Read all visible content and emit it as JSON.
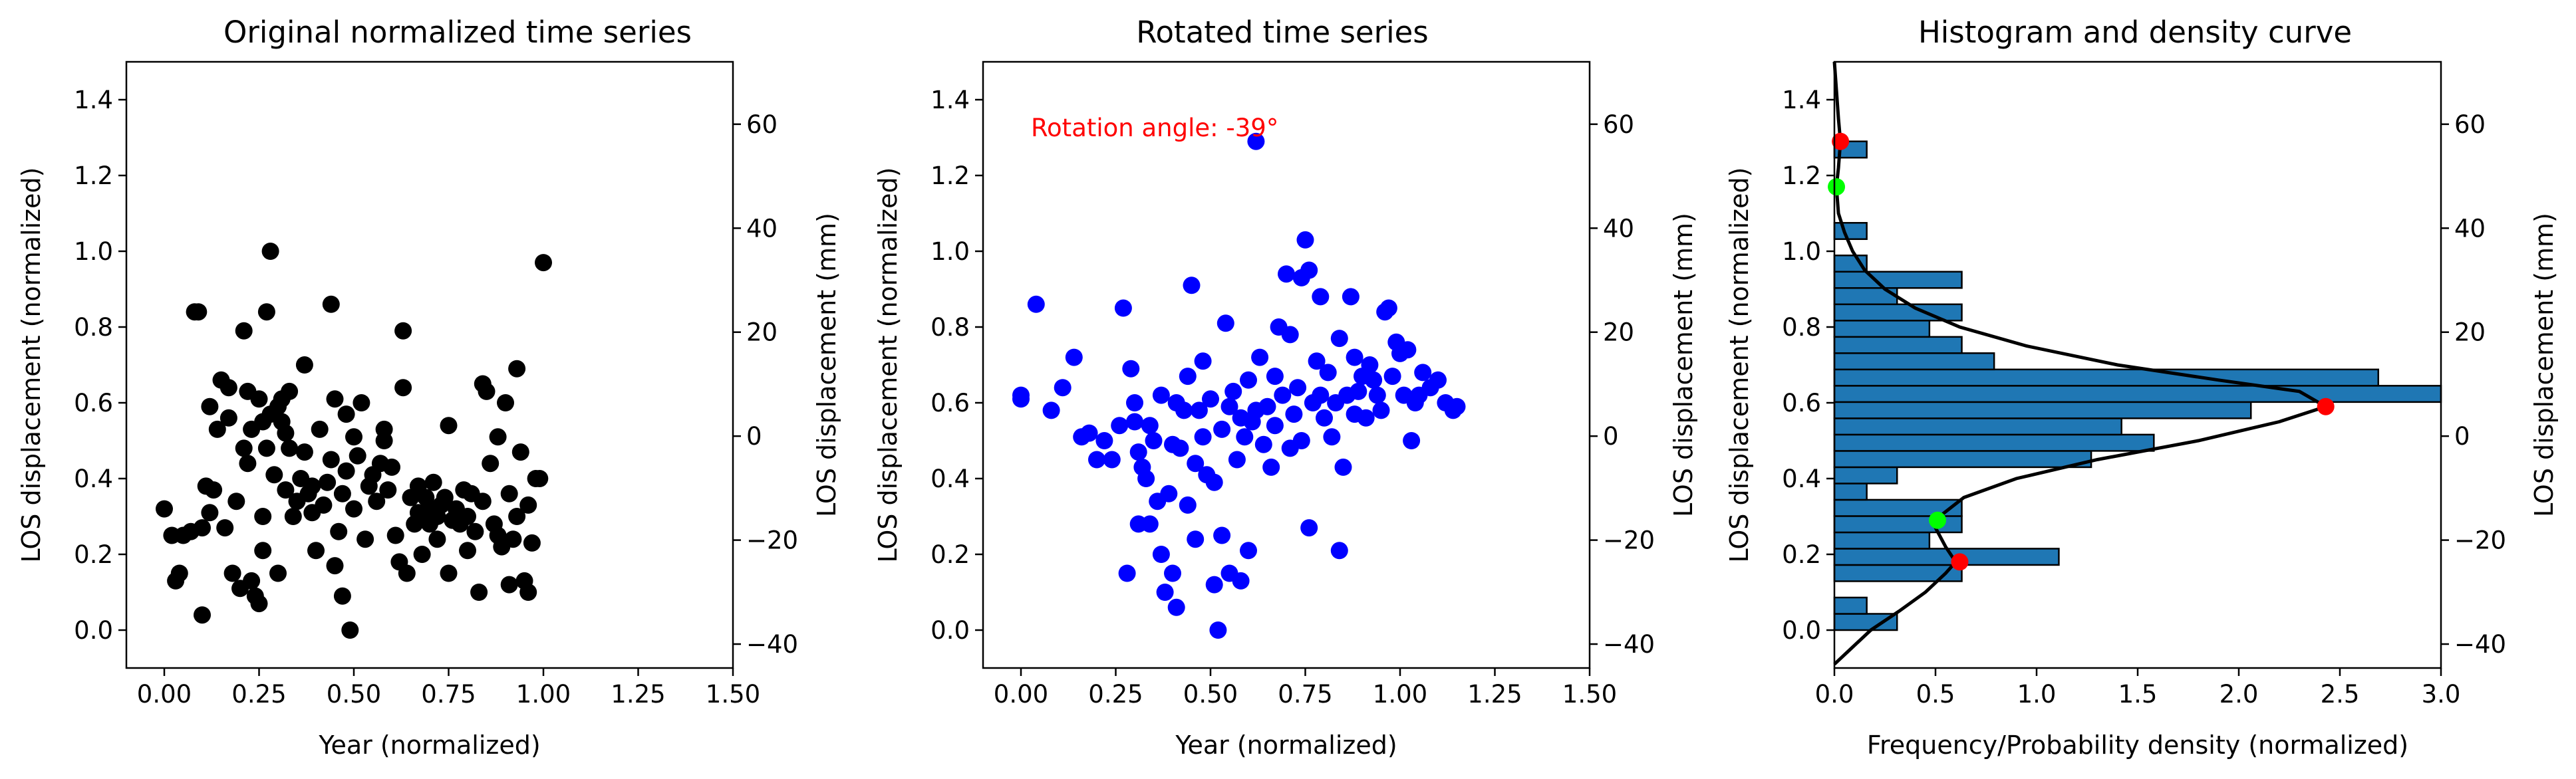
{
  "chart_data": [
    {
      "type": "scatter",
      "title": "Original normalized time series",
      "xlabel": "Year (normalized)",
      "ylabel": "LOS displacement (normalized)",
      "ylabel_right": "LOS displacement (mm)",
      "xlim": [
        -0.1,
        1.5
      ],
      "ylim": [
        -0.1,
        1.5
      ],
      "ylim_right": [
        -44.6,
        72.0
      ],
      "xticks": [
        "0.00",
        "0.25",
        "0.50",
        "0.75",
        "1.00",
        "1.25",
        "1.50"
      ],
      "yticks": [
        "0.0",
        "0.2",
        "0.4",
        "0.6",
        "0.8",
        "1.0",
        "1.2",
        "1.4"
      ],
      "yticks_right": [
        "-40",
        "-20",
        "0",
        "20",
        "40",
        "60"
      ],
      "grid": false,
      "color": "#000000",
      "points": [
        [
          0.0,
          0.32
        ],
        [
          0.02,
          0.25
        ],
        [
          0.03,
          0.13
        ],
        [
          0.04,
          0.15
        ],
        [
          0.05,
          0.25
        ],
        [
          0.07,
          0.26
        ],
        [
          0.08,
          0.84
        ],
        [
          0.09,
          0.84
        ],
        [
          0.1,
          0.04
        ],
        [
          0.1,
          0.27
        ],
        [
          0.11,
          0.38
        ],
        [
          0.12,
          0.59
        ],
        [
          0.12,
          0.31
        ],
        [
          0.13,
          0.37
        ],
        [
          0.14,
          0.53
        ],
        [
          0.15,
          0.66
        ],
        [
          0.16,
          0.27
        ],
        [
          0.17,
          0.64
        ],
        [
          0.17,
          0.56
        ],
        [
          0.18,
          0.15
        ],
        [
          0.19,
          0.34
        ],
        [
          0.2,
          0.11
        ],
        [
          0.21,
          0.79
        ],
        [
          0.21,
          0.48
        ],
        [
          0.22,
          0.44
        ],
        [
          0.22,
          0.63
        ],
        [
          0.23,
          0.13
        ],
        [
          0.23,
          0.53
        ],
        [
          0.24,
          0.09
        ],
        [
          0.25,
          0.07
        ],
        [
          0.25,
          0.61
        ],
        [
          0.26,
          0.55
        ],
        [
          0.26,
          0.21
        ],
        [
          0.26,
          0.3
        ],
        [
          0.27,
          0.84
        ],
        [
          0.27,
          0.48
        ],
        [
          0.28,
          1.0
        ],
        [
          0.28,
          0.57
        ],
        [
          0.29,
          0.41
        ],
        [
          0.3,
          0.15
        ],
        [
          0.3,
          0.59
        ],
        [
          0.31,
          0.61
        ],
        [
          0.31,
          0.55
        ],
        [
          0.32,
          0.52
        ],
        [
          0.32,
          0.37
        ],
        [
          0.33,
          0.63
        ],
        [
          0.33,
          0.48
        ],
        [
          0.34,
          0.3
        ],
        [
          0.35,
          0.34
        ],
        [
          0.36,
          0.4
        ],
        [
          0.37,
          0.7
        ],
        [
          0.37,
          0.47
        ],
        [
          0.38,
          0.36
        ],
        [
          0.39,
          0.38
        ],
        [
          0.39,
          0.31
        ],
        [
          0.4,
          0.21
        ],
        [
          0.41,
          0.53
        ],
        [
          0.42,
          0.33
        ],
        [
          0.43,
          0.39
        ],
        [
          0.44,
          0.86
        ],
        [
          0.44,
          0.45
        ],
        [
          0.45,
          0.61
        ],
        [
          0.45,
          0.17
        ],
        [
          0.46,
          0.26
        ],
        [
          0.47,
          0.36
        ],
        [
          0.47,
          0.09
        ],
        [
          0.48,
          0.42
        ],
        [
          0.48,
          0.57
        ],
        [
          0.49,
          0.0
        ],
        [
          0.5,
          0.51
        ],
        [
          0.5,
          0.32
        ],
        [
          0.51,
          0.46
        ],
        [
          0.52,
          0.6
        ],
        [
          0.53,
          0.24
        ],
        [
          0.54,
          0.38
        ],
        [
          0.55,
          0.41
        ],
        [
          0.56,
          0.34
        ],
        [
          0.57,
          0.44
        ],
        [
          0.58,
          0.53
        ],
        [
          0.58,
          0.5
        ],
        [
          0.59,
          0.37
        ],
        [
          0.6,
          0.43
        ],
        [
          0.61,
          0.25
        ],
        [
          0.62,
          0.18
        ],
        [
          0.63,
          0.79
        ],
        [
          0.63,
          0.64
        ],
        [
          0.64,
          0.15
        ],
        [
          0.65,
          0.35
        ],
        [
          0.66,
          0.28
        ],
        [
          0.67,
          0.31
        ],
        [
          0.67,
          0.38
        ],
        [
          0.68,
          0.2
        ],
        [
          0.69,
          0.35
        ],
        [
          0.7,
          0.32
        ],
        [
          0.7,
          0.28
        ],
        [
          0.71,
          0.39
        ],
        [
          0.72,
          0.3
        ],
        [
          0.72,
          0.24
        ],
        [
          0.73,
          0.33
        ],
        [
          0.74,
          0.35
        ],
        [
          0.75,
          0.54
        ],
        [
          0.75,
          0.15
        ],
        [
          0.76,
          0.29
        ],
        [
          0.77,
          0.32
        ],
        [
          0.78,
          0.28
        ],
        [
          0.79,
          0.37
        ],
        [
          0.8,
          0.3
        ],
        [
          0.8,
          0.21
        ],
        [
          0.81,
          0.36
        ],
        [
          0.82,
          0.26
        ],
        [
          0.83,
          0.1
        ],
        [
          0.84,
          0.65
        ],
        [
          0.84,
          0.34
        ],
        [
          0.85,
          0.63
        ],
        [
          0.86,
          0.44
        ],
        [
          0.87,
          0.28
        ],
        [
          0.88,
          0.51
        ],
        [
          0.88,
          0.25
        ],
        [
          0.89,
          0.22
        ],
        [
          0.9,
          0.6
        ],
        [
          0.91,
          0.12
        ],
        [
          0.91,
          0.36
        ],
        [
          0.92,
          0.24
        ],
        [
          0.93,
          0.69
        ],
        [
          0.93,
          0.3
        ],
        [
          0.94,
          0.47
        ],
        [
          0.95,
          0.13
        ],
        [
          0.96,
          0.33
        ],
        [
          0.96,
          0.1
        ],
        [
          0.97,
          0.23
        ],
        [
          0.98,
          0.4
        ],
        [
          0.99,
          0.4
        ],
        [
          1.0,
          0.97
        ]
      ]
    },
    {
      "type": "scatter",
      "title": "Rotated time series",
      "xlabel": "Year (normalized)",
      "ylabel": "LOS displacement (normalized)",
      "ylabel_right": "LOS displacement (mm)",
      "xlim": [
        -0.1,
        1.5
      ],
      "ylim": [
        -0.1,
        1.5
      ],
      "ylim_right": [
        -44.6,
        72.0
      ],
      "xticks": [
        "0.00",
        "0.25",
        "0.50",
        "0.75",
        "1.00",
        "1.25",
        "1.50"
      ],
      "yticks": [
        "0.0",
        "0.2",
        "0.4",
        "0.6",
        "0.8",
        "1.0",
        "1.2",
        "1.4"
      ],
      "yticks_right": [
        "-40",
        "-20",
        "0",
        "20",
        "40",
        "60"
      ],
      "grid": false,
      "color": "#0000ff",
      "annotation": "Rotation angle: -39$^\\circ$",
      "annotation_display": "Rotation angle: -39°",
      "annotation_color": "#ff0000",
      "points": [
        [
          0.0,
          0.62
        ],
        [
          0.0,
          0.61
        ],
        [
          0.04,
          0.86
        ],
        [
          0.08,
          0.58
        ],
        [
          0.11,
          0.64
        ],
        [
          0.14,
          0.72
        ],
        [
          0.16,
          0.51
        ],
        [
          0.18,
          0.52
        ],
        [
          0.2,
          0.45
        ],
        [
          0.22,
          0.5
        ],
        [
          0.24,
          0.45
        ],
        [
          0.26,
          0.54
        ],
        [
          0.27,
          0.85
        ],
        [
          0.28,
          0.15
        ],
        [
          0.29,
          0.69
        ],
        [
          0.3,
          0.6
        ],
        [
          0.3,
          0.55
        ],
        [
          0.31,
          0.28
        ],
        [
          0.31,
          0.47
        ],
        [
          0.32,
          0.43
        ],
        [
          0.33,
          0.4
        ],
        [
          0.34,
          0.28
        ],
        [
          0.34,
          0.54
        ],
        [
          0.35,
          0.5
        ],
        [
          0.36,
          0.34
        ],
        [
          0.37,
          0.2
        ],
        [
          0.37,
          0.62
        ],
        [
          0.38,
          0.1
        ],
        [
          0.39,
          0.36
        ],
        [
          0.4,
          0.49
        ],
        [
          0.4,
          0.15
        ],
        [
          0.41,
          0.06
        ],
        [
          0.41,
          0.6
        ],
        [
          0.42,
          0.48
        ],
        [
          0.43,
          0.58
        ],
        [
          0.44,
          0.33
        ],
        [
          0.44,
          0.67
        ],
        [
          0.45,
          0.91
        ],
        [
          0.46,
          0.44
        ],
        [
          0.46,
          0.24
        ],
        [
          0.47,
          0.58
        ],
        [
          0.48,
          0.51
        ],
        [
          0.48,
          0.71
        ],
        [
          0.49,
          0.41
        ],
        [
          0.5,
          0.61
        ],
        [
          0.51,
          0.39
        ],
        [
          0.51,
          0.12
        ],
        [
          0.52,
          0.0
        ],
        [
          0.53,
          0.25
        ],
        [
          0.53,
          0.53
        ],
        [
          0.54,
          0.81
        ],
        [
          0.55,
          0.59
        ],
        [
          0.55,
          0.15
        ],
        [
          0.56,
          0.63
        ],
        [
          0.57,
          0.45
        ],
        [
          0.58,
          0.56
        ],
        [
          0.58,
          0.13
        ],
        [
          0.59,
          0.51
        ],
        [
          0.6,
          0.66
        ],
        [
          0.6,
          0.21
        ],
        [
          0.61,
          0.55
        ],
        [
          0.62,
          1.29
        ],
        [
          0.62,
          0.58
        ],
        [
          0.63,
          0.72
        ],
        [
          0.64,
          0.49
        ],
        [
          0.65,
          0.59
        ],
        [
          0.66,
          0.43
        ],
        [
          0.67,
          0.67
        ],
        [
          0.67,
          0.54
        ],
        [
          0.68,
          0.8
        ],
        [
          0.69,
          0.62
        ],
        [
          0.7,
          0.94
        ],
        [
          0.71,
          0.48
        ],
        [
          0.71,
          0.78
        ],
        [
          0.72,
          0.57
        ],
        [
          0.73,
          0.64
        ],
        [
          0.74,
          0.93
        ],
        [
          0.74,
          0.5
        ],
        [
          0.75,
          1.03
        ],
        [
          0.76,
          0.95
        ],
        [
          0.76,
          0.27
        ],
        [
          0.77,
          0.6
        ],
        [
          0.78,
          0.71
        ],
        [
          0.79,
          0.88
        ],
        [
          0.79,
          0.62
        ],
        [
          0.8,
          0.56
        ],
        [
          0.81,
          0.68
        ],
        [
          0.82,
          0.51
        ],
        [
          0.83,
          0.6
        ],
        [
          0.84,
          0.21
        ],
        [
          0.84,
          0.77
        ],
        [
          0.85,
          0.43
        ],
        [
          0.86,
          0.62
        ],
        [
          0.87,
          0.88
        ],
        [
          0.88,
          0.57
        ],
        [
          0.88,
          0.72
        ],
        [
          0.89,
          0.63
        ],
        [
          0.9,
          0.67
        ],
        [
          0.91,
          0.56
        ],
        [
          0.92,
          0.7
        ],
        [
          0.93,
          0.66
        ],
        [
          0.94,
          0.62
        ],
        [
          0.95,
          0.58
        ],
        [
          0.96,
          0.84
        ],
        [
          0.97,
          0.85
        ],
        [
          0.98,
          0.67
        ],
        [
          0.99,
          0.76
        ],
        [
          1.0,
          0.73
        ],
        [
          1.01,
          0.62
        ],
        [
          1.02,
          0.74
        ],
        [
          1.03,
          0.5
        ],
        [
          1.04,
          0.6
        ],
        [
          1.05,
          0.62
        ],
        [
          1.06,
          0.68
        ],
        [
          1.08,
          0.64
        ],
        [
          1.1,
          0.66
        ],
        [
          1.12,
          0.6
        ],
        [
          1.14,
          0.58
        ],
        [
          1.15,
          0.59
        ]
      ]
    },
    {
      "type": "bar",
      "orientation": "horizontal",
      "title": "Histogram and density curve",
      "xlabel": "Frequency/Probability density (normalized)",
      "ylabel": "LOS displacement (normalized)",
      "ylabel_right": "LOS displacement (mm)",
      "xlim": [
        0.0,
        3.0
      ],
      "ylim": [
        -0.1,
        1.5
      ],
      "ylim_right": [
        -44.6,
        72.0
      ],
      "xticks": [
        "0.0",
        "0.5",
        "1.0",
        "1.5",
        "2.0",
        "2.5",
        "3.0"
      ],
      "yticks": [
        "0.0",
        "0.2",
        "0.4",
        "0.6",
        "0.8",
        "1.0",
        "1.2",
        "1.4"
      ],
      "yticks_right": [
        "-40",
        "-20",
        "0",
        "20",
        "40",
        "60"
      ],
      "bar_color": "#1f77b4",
      "bin_edges": [
        0.0,
        0.043,
        0.086,
        0.129,
        0.172,
        0.215,
        0.258,
        0.301,
        0.344,
        0.387,
        0.43,
        0.473,
        0.516,
        0.559,
        0.602,
        0.645,
        0.688,
        0.731,
        0.774,
        0.817,
        0.86,
        0.903,
        0.946,
        0.989,
        1.032,
        1.075,
        1.118,
        1.161,
        1.204,
        1.247,
        1.29,
        1.333
      ],
      "bin_values": [
        0.31,
        0.16,
        0.0,
        0.63,
        1.11,
        0.47,
        0.63,
        0.63,
        0.16,
        0.31,
        1.27,
        1.58,
        1.42,
        2.06,
        3.0,
        2.69,
        0.79,
        0.63,
        0.47,
        0.63,
        0.31,
        0.63,
        0.16,
        0.0,
        0.16,
        0.0,
        0.0,
        0.0,
        0.0,
        0.16,
        0.0
      ],
      "density_curve": {
        "color": "#000000",
        "points": [
          [
            0.0,
            -0.09
          ],
          [
            0.08,
            -0.05
          ],
          [
            0.18,
            0.0
          ],
          [
            0.32,
            0.05
          ],
          [
            0.45,
            0.1
          ],
          [
            0.55,
            0.15
          ],
          [
            0.6,
            0.18
          ],
          [
            0.55,
            0.22
          ],
          [
            0.5,
            0.27
          ],
          [
            0.52,
            0.3
          ],
          [
            0.64,
            0.35
          ],
          [
            0.9,
            0.4
          ],
          [
            1.3,
            0.45
          ],
          [
            1.8,
            0.5
          ],
          [
            2.2,
            0.55
          ],
          [
            2.43,
            0.59
          ],
          [
            2.3,
            0.63
          ],
          [
            1.9,
            0.66
          ],
          [
            1.4,
            0.7
          ],
          [
            0.95,
            0.75
          ],
          [
            0.62,
            0.8
          ],
          [
            0.4,
            0.85
          ],
          [
            0.25,
            0.9
          ],
          [
            0.15,
            0.95
          ],
          [
            0.09,
            1.0
          ],
          [
            0.05,
            1.05
          ],
          [
            0.02,
            1.1
          ],
          [
            0.01,
            1.17
          ],
          [
            0.02,
            1.22
          ],
          [
            0.03,
            1.29
          ],
          [
            0.02,
            1.35
          ],
          [
            0.0,
            1.5
          ]
        ]
      },
      "markers": [
        {
          "x": 0.62,
          "y": 0.18,
          "color": "#ff0000"
        },
        {
          "x": 2.43,
          "y": 0.59,
          "color": "#ff0000"
        },
        {
          "x": 0.03,
          "y": 1.29,
          "color": "#ff0000"
        },
        {
          "x": 0.51,
          "y": 0.29,
          "color": "#00ff00"
        },
        {
          "x": 0.01,
          "y": 1.17,
          "color": "#00ff00"
        }
      ]
    }
  ]
}
